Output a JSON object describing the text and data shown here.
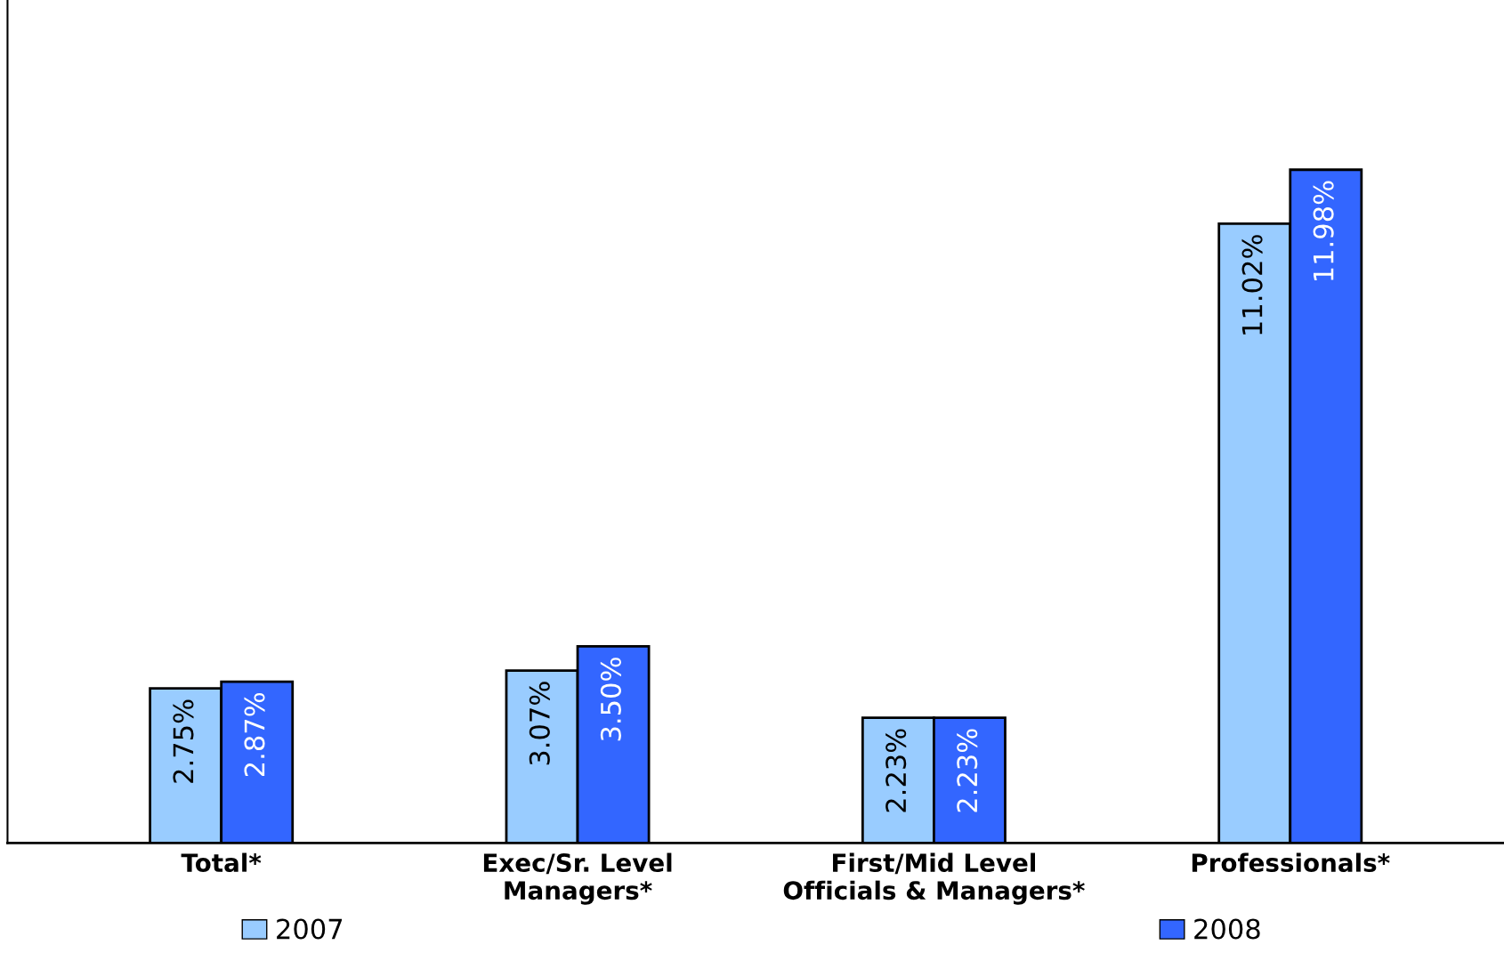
{
  "chart_data": {
    "type": "bar",
    "categories": [
      "Total*",
      "Exec/Sr. Level\nManagers*",
      "First/Mid Level\nOfficials & Managers*",
      "Professionals*"
    ],
    "series": [
      {
        "name": "2007",
        "color": "#99ccff",
        "values": [
          2.75,
          3.07,
          2.23,
          11.02
        ],
        "value_labels": [
          "2.75%",
          "3.07%",
          "2.23%",
          "11.02%"
        ]
      },
      {
        "name": "2008",
        "color": "#3366ff",
        "values": [
          2.87,
          3.5,
          2.23,
          11.98
        ],
        "value_labels": [
          "2.87%",
          "3.50%",
          "2.23%",
          "11.98%"
        ]
      }
    ],
    "ylim": [
      0,
      15
    ],
    "tick_labels": "x",
    "grid": false,
    "legend": "bottom"
  }
}
